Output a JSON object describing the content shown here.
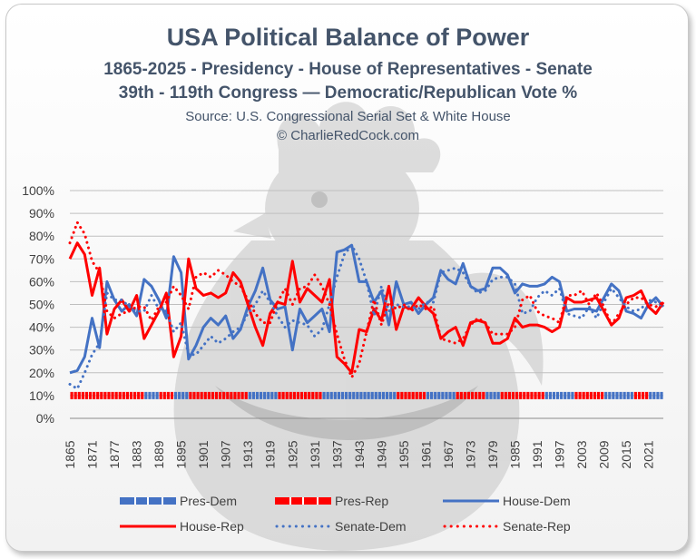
{
  "chart_data": {
    "type": "line",
    "title": "USA Political Balance of Power",
    "subtitle1": "1865-2025 - Presidency - House of Representatives - Senate",
    "subtitle2": "39th - 119th Congress — Democratic/Republican Vote %",
    "source": "Source: U.S. Congressional Serial Set & White House",
    "copyright": "© CharlieRedCock.com",
    "ylim": [
      0,
      100
    ],
    "ytick_labels": [
      "0%",
      "10%",
      "20%",
      "30%",
      "40%",
      "50%",
      "60%",
      "70%",
      "80%",
      "90%",
      "100%"
    ],
    "xtick_labels": [
      "1865",
      "1871",
      "1877",
      "1883",
      "1889",
      "1895",
      "1901",
      "1907",
      "1913",
      "1919",
      "1925",
      "1931",
      "1937",
      "1943",
      "1949",
      "1955",
      "1961",
      "1967",
      "1973",
      "1979",
      "1985",
      "1991",
      "1997",
      "2003",
      "2009",
      "2015",
      "2021"
    ],
    "xlim": [
      1865,
      2025
    ],
    "x_start": 1865,
    "x_step": 2,
    "legend": [
      "Pres-Dem",
      "Pres-Rep",
      "House-Dem",
      "House-Rep",
      "Senate-Dem",
      "Senate-Rep"
    ],
    "presidency_rep_level": 10,
    "presidency_dem_years": [
      1885,
      1886,
      1887,
      1888,
      1893,
      1894,
      1895,
      1896,
      1913,
      1914,
      1915,
      1916,
      1917,
      1918,
      1919,
      1920,
      1933,
      1934,
      1935,
      1936,
      1937,
      1938,
      1939,
      1940,
      1941,
      1942,
      1943,
      1944,
      1945,
      1946,
      1947,
      1948,
      1949,
      1950,
      1951,
      1952,
      1961,
      1962,
      1963,
      1964,
      1965,
      1966,
      1967,
      1968,
      1977,
      1978,
      1979,
      1980,
      1993,
      1994,
      1995,
      1996,
      1997,
      1998,
      1999,
      2000,
      2009,
      2010,
      2011,
      2012,
      2013,
      2014,
      2015,
      2016,
      2021,
      2022,
      2023,
      2024
    ],
    "series": [
      {
        "name": "House-Dem",
        "values": [
          20,
          21,
          27,
          44,
          31,
          60,
          52,
          47,
          50,
          45,
          61,
          58,
          52,
          44,
          71,
          64,
          26,
          32,
          40,
          44,
          41,
          45,
          35,
          39,
          49,
          56,
          66,
          52,
          48,
          49,
          30,
          48,
          42,
          45,
          48,
          38,
          73,
          74,
          76,
          60,
          60,
          51,
          56,
          41,
          60,
          50,
          51,
          46,
          50,
          53,
          65,
          61,
          59,
          68,
          58,
          56,
          57,
          66,
          66,
          63,
          55,
          59,
          58,
          58,
          59,
          62,
          60,
          47,
          48,
          48,
          48,
          47,
          53,
          59,
          56,
          47,
          46,
          44,
          50,
          53,
          49
        ]
      },
      {
        "name": "House-Rep",
        "values": [
          70,
          77,
          72,
          54,
          66,
          37,
          48,
          52,
          47,
          54,
          35,
          41,
          47,
          55,
          27,
          36,
          70,
          57,
          54,
          55,
          53,
          55,
          64,
          60,
          50,
          40,
          32,
          46,
          51,
          50,
          69,
          51,
          57,
          54,
          51,
          61,
          27,
          24,
          20,
          39,
          38,
          48,
          43,
          58,
          39,
          49,
          48,
          53,
          49,
          46,
          35,
          38,
          40,
          32,
          42,
          43,
          42,
          33,
          33,
          35,
          44,
          40,
          41,
          41,
          40,
          38,
          40,
          53,
          51,
          51,
          52,
          53,
          47,
          41,
          44,
          53,
          54,
          56,
          49,
          46,
          51
        ]
      },
      {
        "name": "Senate-Dem",
        "values": [
          15,
          13,
          20,
          28,
          33,
          55,
          52,
          52,
          49,
          47,
          47,
          54,
          48,
          47,
          38,
          42,
          28,
          28,
          32,
          36,
          33,
          35,
          38,
          40,
          46,
          50,
          56,
          51,
          45,
          40,
          43,
          42,
          41,
          36,
          39,
          50,
          62,
          72,
          76,
          70,
          60,
          45,
          58,
          47,
          50,
          49,
          49,
          48,
          51,
          51,
          64,
          65,
          66,
          64,
          58,
          55,
          56,
          61,
          62,
          62,
          59,
          46,
          47,
          53,
          56,
          54,
          57,
          46,
          45,
          44,
          49,
          44,
          51,
          57,
          53,
          49,
          47,
          48,
          52,
          51,
          49
        ]
      },
      {
        "name": "Senate-Rep",
        "values": [
          77,
          86,
          81,
          69,
          64,
          47,
          44,
          46,
          47,
          49,
          49,
          43,
          49,
          51,
          58,
          54,
          48,
          62,
          64,
          62,
          65,
          63,
          60,
          58,
          52,
          46,
          42,
          42,
          51,
          57,
          50,
          57,
          58,
          63,
          58,
          50,
          37,
          26,
          18,
          24,
          38,
          52,
          41,
          51,
          48,
          50,
          47,
          50,
          48,
          49,
          35,
          34,
          33,
          35,
          41,
          44,
          42,
          37,
          37,
          37,
          40,
          52,
          54,
          47,
          45,
          44,
          42,
          54,
          54,
          56,
          50,
          55,
          49,
          41,
          46,
          50,
          53,
          53,
          50,
          49,
          51
        ]
      }
    ],
    "colors": {
      "dem": "#4472c4",
      "rep": "#ff0000",
      "title": "#44546a",
      "grid": "#bfbfbf",
      "text": "#404040",
      "rooster": "#bcbcbc"
    }
  }
}
